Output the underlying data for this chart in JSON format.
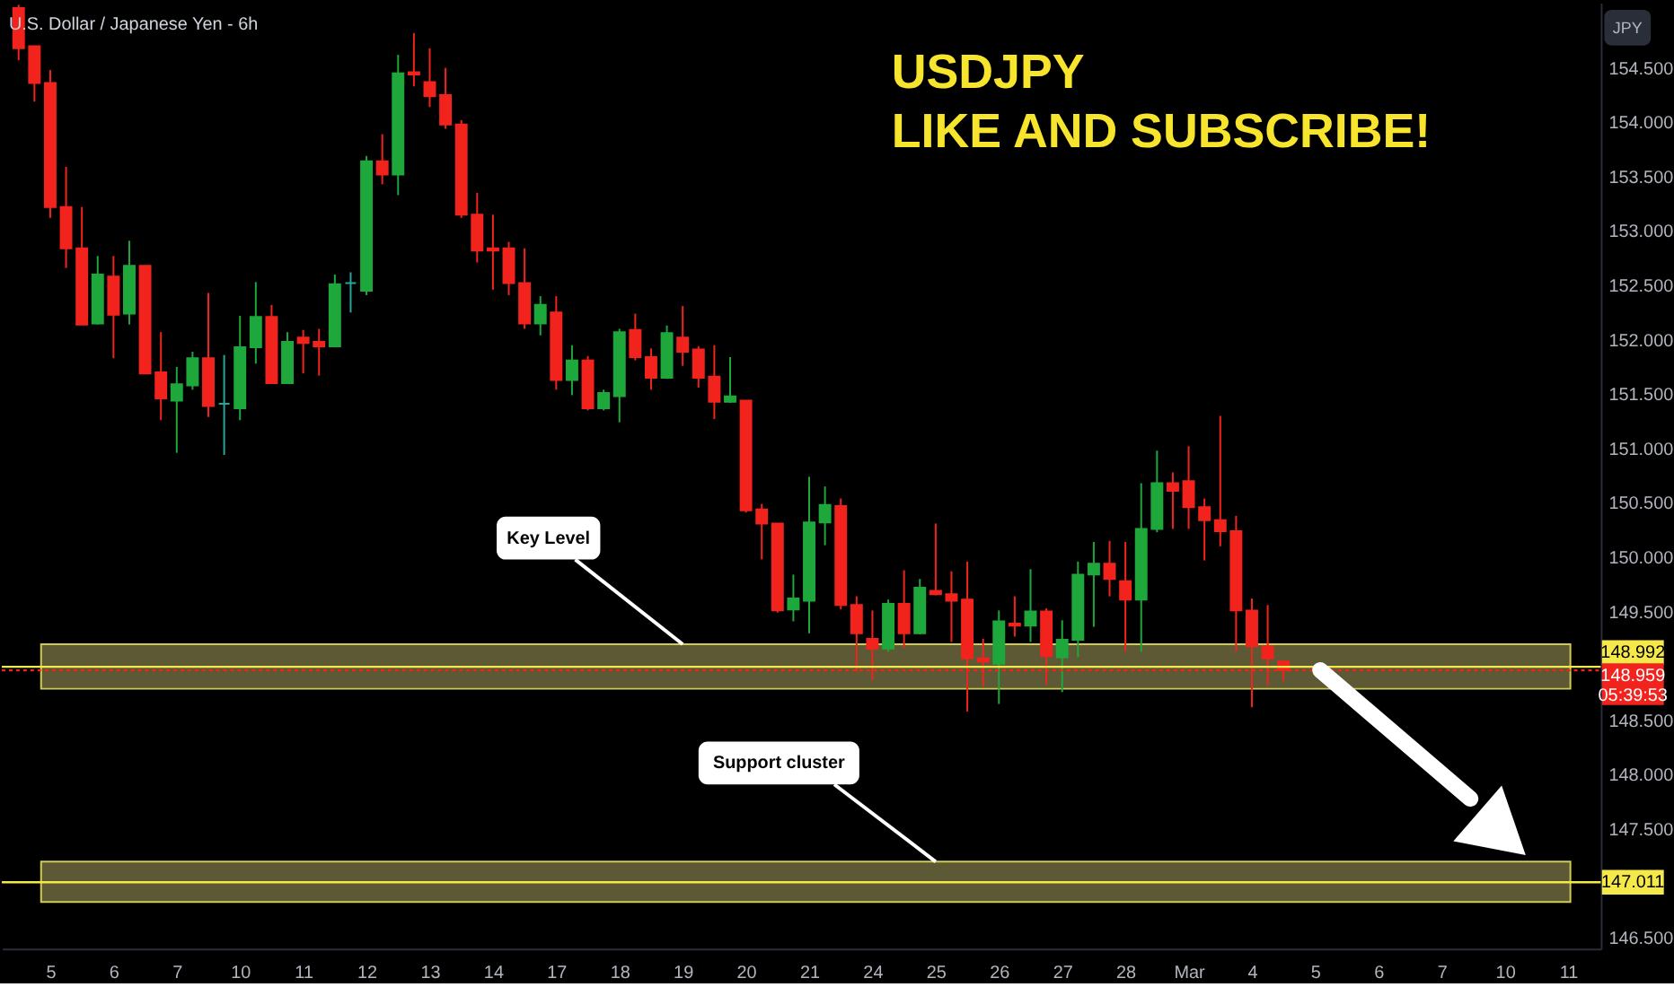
{
  "chart_data": {
    "type": "candlestick",
    "title": "U.S. Dollar / Japanese Yen - 6h",
    "categories": [
      null,
      null,
      "5",
      null,
      null,
      null,
      "6",
      null,
      null,
      null,
      "7",
      null,
      null,
      null,
      "10",
      null,
      null,
      null,
      "11",
      null,
      null,
      null,
      "12",
      null,
      null,
      null,
      "13",
      null,
      null,
      null,
      "14",
      null,
      null,
      null,
      "17",
      null,
      null,
      null,
      "18",
      null,
      null,
      null,
      "19",
      null,
      null,
      null,
      "20",
      null,
      null,
      null,
      "21",
      null,
      null,
      null,
      "24",
      null,
      null,
      null,
      "25",
      null,
      null,
      null,
      "26",
      null,
      null,
      null,
      "27",
      null,
      null,
      null,
      "28",
      null,
      null,
      null,
      "Mar",
      null,
      null,
      null,
      "4",
      null,
      null,
      null,
      "5",
      null,
      null,
      null,
      "6",
      null,
      null,
      null,
      "7",
      null,
      null,
      null,
      "10",
      null,
      null,
      null,
      "11",
      null
    ],
    "ohlc": [
      [
        155.05,
        155.08,
        154.57,
        154.68
      ],
      [
        154.7,
        154.7,
        154.19,
        154.36
      ],
      [
        154.36,
        154.48,
        153.12,
        153.22
      ],
      [
        153.22,
        153.59,
        152.66,
        152.84
      ],
      [
        152.84,
        153.22,
        152.14,
        152.14
      ],
      [
        152.15,
        152.77,
        152.14,
        152.6
      ],
      [
        152.58,
        152.77,
        151.83,
        152.23
      ],
      [
        152.24,
        152.91,
        152.14,
        152.68
      ],
      [
        152.68,
        152.68,
        151.69,
        151.69
      ],
      [
        151.7,
        152.07,
        151.26,
        151.46
      ],
      [
        151.44,
        151.75,
        150.96,
        151.59
      ],
      [
        151.58,
        151.89,
        151.54,
        151.83
      ],
      [
        151.83,
        152.43,
        151.29,
        151.39
      ],
      [
        151.41,
        151.86,
        150.94,
        151.41
      ],
      [
        151.37,
        152.22,
        151.26,
        151.93
      ],
      [
        151.93,
        152.53,
        151.78,
        152.21
      ],
      [
        152.21,
        152.32,
        151.6,
        151.6
      ],
      [
        151.6,
        152.07,
        151.6,
        151.98
      ],
      [
        152.02,
        152.09,
        151.69,
        151.97
      ],
      [
        151.98,
        152.1,
        151.67,
        151.94
      ],
      [
        151.94,
        152.6,
        151.94,
        152.51
      ],
      [
        152.52,
        152.62,
        152.25,
        152.52
      ],
      [
        152.45,
        153.69,
        152.41,
        153.64
      ],
      [
        153.64,
        153.89,
        153.43,
        153.52
      ],
      [
        153.52,
        154.62,
        153.33,
        154.45
      ],
      [
        154.46,
        154.82,
        154.33,
        154.44
      ],
      [
        154.37,
        154.68,
        154.14,
        154.24
      ],
      [
        154.25,
        154.5,
        153.94,
        153.98
      ],
      [
        153.98,
        154.02,
        153.12,
        153.15
      ],
      [
        153.15,
        153.35,
        152.71,
        152.82
      ],
      [
        152.84,
        153.15,
        152.46,
        152.82
      ],
      [
        152.84,
        152.9,
        152.41,
        152.52
      ],
      [
        152.52,
        152.84,
        152.1,
        152.15
      ],
      [
        152.15,
        152.4,
        152.04,
        152.32
      ],
      [
        152.25,
        152.4,
        151.54,
        151.63
      ],
      [
        151.63,
        151.95,
        151.49,
        151.81
      ],
      [
        151.81,
        151.85,
        151.35,
        151.37
      ],
      [
        151.37,
        151.54,
        151.35,
        151.51
      ],
      [
        151.48,
        152.1,
        151.24,
        152.07
      ],
      [
        152.09,
        152.24,
        151.81,
        151.84
      ],
      [
        151.84,
        151.92,
        151.54,
        151.65
      ],
      [
        151.65,
        152.13,
        151.64,
        152.06
      ],
      [
        152.02,
        152.31,
        151.76,
        151.89
      ],
      [
        151.91,
        151.94,
        151.56,
        151.65
      ],
      [
        151.66,
        151.95,
        151.27,
        151.43
      ],
      [
        151.43,
        151.84,
        151.42,
        151.48
      ],
      [
        151.44,
        151.44,
        150.41,
        150.43
      ],
      [
        150.44,
        150.49,
        149.98,
        150.31
      ],
      [
        150.31,
        150.31,
        149.49,
        149.51
      ],
      [
        149.52,
        149.84,
        149.41,
        149.62
      ],
      [
        149.6,
        150.74,
        149.3,
        150.32
      ],
      [
        150.32,
        150.65,
        150.11,
        150.48
      ],
      [
        150.47,
        150.54,
        149.52,
        149.56
      ],
      [
        149.56,
        149.64,
        148.95,
        149.3
      ],
      [
        149.25,
        149.51,
        148.87,
        149.16
      ],
      [
        149.16,
        149.61,
        149.13,
        149.57
      ],
      [
        149.57,
        149.88,
        149.17,
        149.3
      ],
      [
        149.3,
        149.8,
        149.29,
        149.72
      ],
      [
        149.69,
        150.31,
        149.65,
        149.66
      ],
      [
        149.66,
        149.87,
        149.22,
        149.6
      ],
      [
        149.61,
        149.96,
        148.58,
        149.07
      ],
      [
        149.07,
        149.25,
        148.81,
        149.04
      ],
      [
        149.02,
        149.51,
        148.65,
        149.41
      ],
      [
        149.39,
        149.64,
        149.27,
        149.37
      ],
      [
        149.37,
        149.89,
        149.22,
        149.5
      ],
      [
        149.5,
        149.53,
        148.83,
        149.09
      ],
      [
        149.08,
        149.42,
        148.76,
        149.24
      ],
      [
        149.24,
        149.96,
        149.08,
        149.84
      ],
      [
        149.84,
        150.14,
        149.36,
        149.94
      ],
      [
        149.94,
        150.15,
        149.64,
        149.8
      ],
      [
        149.78,
        150.14,
        149.13,
        149.61
      ],
      [
        149.61,
        150.68,
        149.13,
        150.26
      ],
      [
        150.26,
        150.98,
        150.23,
        150.68
      ],
      [
        150.68,
        150.78,
        150.26,
        150.61
      ],
      [
        150.7,
        151.02,
        150.26,
        150.46
      ],
      [
        150.46,
        150.54,
        149.97,
        150.34
      ],
      [
        150.34,
        151.3,
        150.1,
        150.24
      ],
      [
        150.24,
        150.38,
        149.13,
        149.51
      ],
      [
        149.51,
        149.62,
        148.62,
        149.18
      ],
      [
        149.18,
        149.56,
        148.82,
        149.07
      ],
      [
        149.04,
        149.05,
        148.86,
        148.96
      ],
      null,
      null,
      null,
      null,
      null,
      null,
      null,
      null,
      null,
      null,
      null,
      null,
      null,
      null,
      null,
      null,
      null,
      null,
      null
    ],
    "colors": [
      "#f2231d",
      "#f2231d",
      "#f2231d",
      "#f2231d",
      "#f2231d",
      "#1ea83c",
      "#f2231d",
      "#1ea83c",
      "#f2231d",
      "#f2231d",
      "#1ea83c",
      "#1ea83c",
      "#f2231d",
      "#26a69a",
      "#1ea83c",
      "#1ea83c",
      "#f2231d",
      "#1ea83c",
      "#f2231d",
      "#f2231d",
      "#1ea83c",
      "#26a69a",
      "#1ea83c",
      "#f2231d",
      "#1ea83c",
      "#f2231d",
      "#f2231d",
      "#f2231d",
      "#f2231d",
      "#f2231d",
      "#f2231d",
      "#f2231d",
      "#f2231d",
      "#1ea83c",
      "#f2231d",
      "#1ea83c",
      "#f2231d",
      "#1ea83c",
      "#1ea83c",
      "#f2231d",
      "#f2231d",
      "#1ea83c",
      "#f2231d",
      "#f2231d",
      "#f2231d",
      "#1ea83c",
      "#f2231d",
      "#f2231d",
      "#f2231d",
      "#1ea83c",
      "#1ea83c",
      "#1ea83c",
      "#f2231d",
      "#f2231d",
      "#f2231d",
      "#1ea83c",
      "#f2231d",
      "#1ea83c",
      "#f2231d",
      "#f2231d",
      "#f2231d",
      "#f2231d",
      "#1ea83c",
      "#f2231d",
      "#1ea83c",
      "#f2231d",
      "#1ea83c",
      "#1ea83c",
      "#1ea83c",
      "#f2231d",
      "#f2231d",
      "#1ea83c",
      "#1ea83c",
      "#f2231d",
      "#f2231d",
      "#f2231d",
      "#f2231d",
      "#f2231d",
      "#f2231d",
      "#f2231d",
      "#f2231d",
      null,
      null,
      null,
      null,
      null,
      null,
      null,
      null,
      null,
      null,
      null,
      null,
      null,
      null,
      null,
      null,
      null,
      null,
      null
    ],
    "ylim": [
      146.4,
      155.1
    ],
    "yticks": [
      {
        "value": 146.5,
        "label": "146.500"
      },
      {
        "value": 147.5,
        "label": "147.500"
      },
      {
        "value": 148,
        "label": "148.000"
      },
      {
        "value": 148.5,
        "label": "148.500"
      },
      {
        "value": 149.5,
        "label": "149.500"
      },
      {
        "value": 150,
        "label": "150.000"
      },
      {
        "value": 150.5,
        "label": "150.500"
      },
      {
        "value": 151,
        "label": "151.000"
      },
      {
        "value": 151.5,
        "label": "151.500"
      },
      {
        "value": 152,
        "label": "152.000"
      },
      {
        "value": 152.5,
        "label": "152.500"
      },
      {
        "value": 153,
        "label": "153.000"
      },
      {
        "value": 153.5,
        "label": "153.500"
      },
      {
        "value": 154,
        "label": "154.000"
      },
      {
        "value": 154.5,
        "label": "154.500"
      }
    ],
    "bands": [
      {
        "axis": "y",
        "from": 148.79,
        "to": 149.2,
        "color": "#66633a"
      },
      {
        "axis": "y",
        "from": 146.83,
        "to": 147.2,
        "color": "#66633a"
      }
    ],
    "ref_lines": [
      {
        "axis": "y",
        "value": 148.992,
        "label": "148.992",
        "color": "#f5e94a",
        "line_style": "solid"
      },
      {
        "axis": "y",
        "value": 147.011,
        "label": "147.011",
        "color": "#f5e94a",
        "line_style": "solid"
      },
      {
        "axis": "y",
        "value": 148.959,
        "label": "148.959",
        "color": "#f2231d",
        "line_style": "dotted"
      }
    ],
    "annotations": [
      "USDJPY",
      "LIKE AND SUBSCRIBE!",
      {
        "text": "Key Level",
        "x": "19",
        "y": 149.2
      },
      {
        "text": "Support cluster",
        "x": "25",
        "y": 147.2
      },
      "JPY",
      "05:39:53"
    ],
    "grid": false
  }
}
